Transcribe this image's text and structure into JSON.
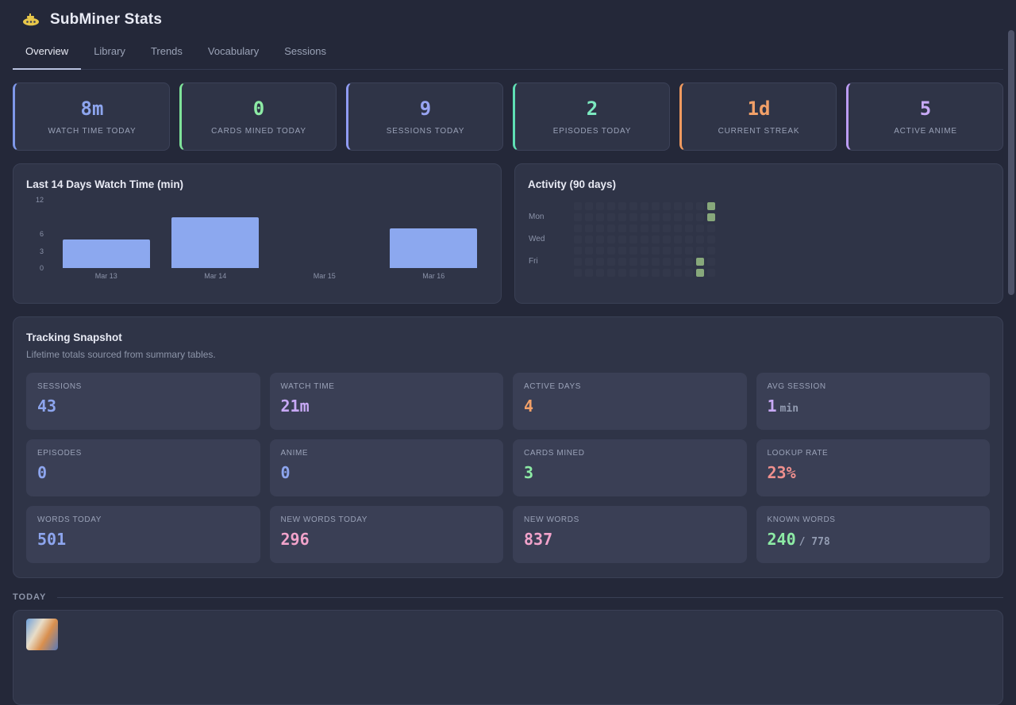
{
  "header": {
    "title": "SubMiner Stats"
  },
  "tabs": [
    {
      "label": "Overview",
      "active": true
    },
    {
      "label": "Library",
      "active": false
    },
    {
      "label": "Trends",
      "active": false
    },
    {
      "label": "Vocabulary",
      "active": false
    },
    {
      "label": "Sessions",
      "active": false
    }
  ],
  "stat_cards": [
    {
      "label": "WATCH TIME TODAY",
      "value": "8m",
      "color": "#8da5ee",
      "accent": "#7e97e8"
    },
    {
      "label": "CARDS MINED TODAY",
      "value": "0",
      "color": "#8deba5",
      "accent": "#7fe39a"
    },
    {
      "label": "SESSIONS TODAY",
      "value": "9",
      "color": "#98a4f2",
      "accent": "#8f9bf2"
    },
    {
      "label": "EPISODES TODAY",
      "value": "2",
      "color": "#7ce9c0",
      "accent": "#5fe0b4"
    },
    {
      "label": "CURRENT STREAK",
      "value": "1d",
      "color": "#f2a068",
      "accent": "#f09a5f"
    },
    {
      "label": "ACTIVE ANIME",
      "value": "5",
      "color": "#c8a9f6",
      "accent": "#bb9cf4"
    }
  ],
  "chart_data": [
    {
      "type": "bar",
      "title": "Last 14 Days Watch Time (min)",
      "categories": [
        "Mar 13",
        "Mar 14",
        "Mar 15",
        "Mar 16"
      ],
      "values": [
        5,
        9,
        0,
        7
      ],
      "yticks": [
        12,
        6,
        3,
        0
      ],
      "ylim": [
        0,
        12
      ],
      "bar_color": "#8ca8ef",
      "xlabel": "",
      "ylabel": "min",
      "grid": false,
      "legend": "none"
    },
    {
      "type": "heatmap",
      "title": "Activity (90 days)",
      "day_labels": [
        "Mon",
        "Wed",
        "Fri"
      ],
      "cols": 13,
      "rows": 7,
      "active_color": "#87a87b",
      "active_cells": [
        {
          "col": 12,
          "row": 0
        },
        {
          "col": 12,
          "row": 1
        },
        {
          "col": 11,
          "row": 5
        },
        {
          "col": 11,
          "row": 6
        }
      ]
    }
  ],
  "snapshot": {
    "title": "Tracking Snapshot",
    "subtitle": "Lifetime totals sourced from summary tables.",
    "tiles": [
      {
        "label": "SESSIONS",
        "value": "43",
        "suffix": "",
        "color": "#8da5ee"
      },
      {
        "label": "WATCH TIME",
        "value": "21m",
        "suffix": "",
        "color": "#c8a9f6"
      },
      {
        "label": "ACTIVE DAYS",
        "value": "4",
        "suffix": "",
        "color": "#f2a068"
      },
      {
        "label": "AVG SESSION",
        "value": "1",
        "suffix": "min",
        "color": "#c8a9f6"
      },
      {
        "label": "EPISODES",
        "value": "0",
        "suffix": "",
        "color": "#8da5ee"
      },
      {
        "label": "ANIME",
        "value": "0",
        "suffix": "",
        "color": "#8da5ee"
      },
      {
        "label": "CARDS MINED",
        "value": "3",
        "suffix": "",
        "color": "#8deba5"
      },
      {
        "label": "LOOKUP RATE",
        "value": "23%",
        "suffix": "",
        "color": "#f0908e"
      },
      {
        "label": "WORDS TODAY",
        "value": "501",
        "suffix": "",
        "color": "#8da5ee"
      },
      {
        "label": "NEW WORDS TODAY",
        "value": "296",
        "suffix": "",
        "color": "#f2a3cb"
      },
      {
        "label": "NEW WORDS",
        "value": "837",
        "suffix": "",
        "color": "#f2a3cb"
      },
      {
        "label": "KNOWN WORDS",
        "value": "240",
        "suffix": "/ 778",
        "color": "#8deba5"
      }
    ]
  },
  "today": {
    "label": "TODAY"
  }
}
